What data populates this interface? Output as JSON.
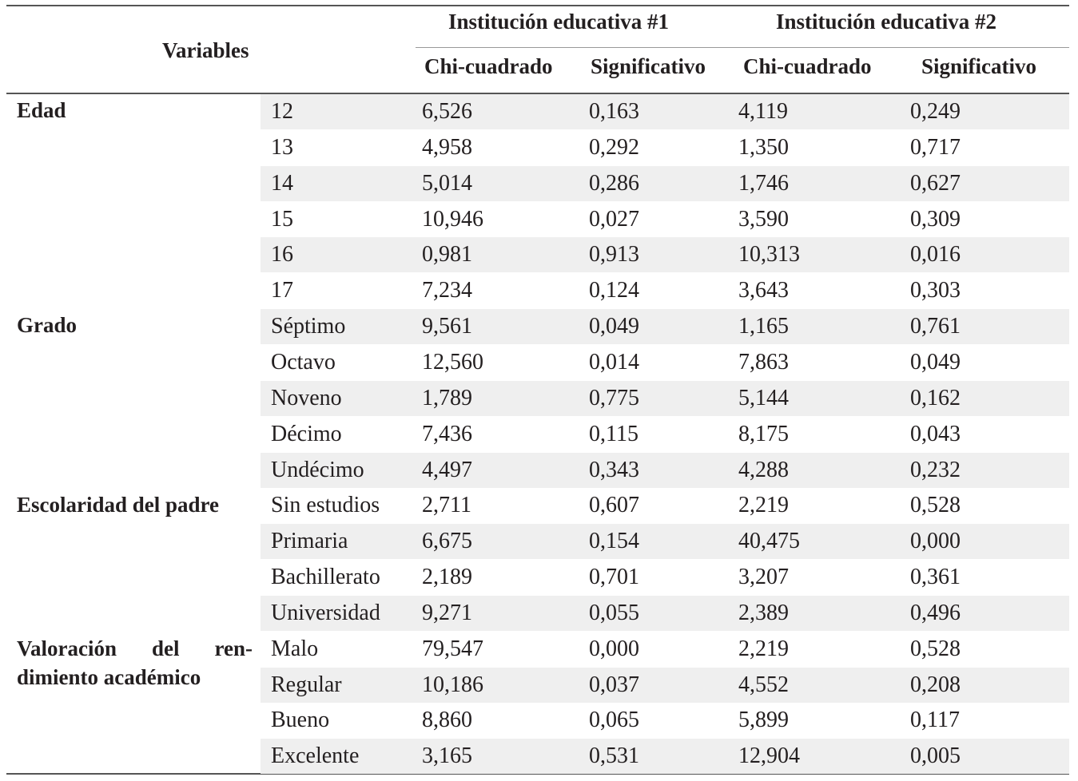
{
  "header": {
    "variables": "Variables",
    "inst1": "Institución educativa #1",
    "inst2": "Institución educativa #2",
    "chi1": "Chi-cuadrado",
    "sig1": "Significativo",
    "chi2": "Chi-cuadrado",
    "sig2": "Significativo"
  },
  "groups": [
    {
      "label": "Edad"
    },
    {
      "label": "Grado"
    },
    {
      "label": "Escolaridad del padre"
    },
    {
      "label_line1_words": [
        "Valoración",
        "del",
        "ren-"
      ],
      "label_line2": "dimiento académico"
    }
  ],
  "rows": [
    [
      "12",
      "6,526",
      "0,163",
      "4,119",
      "0,249"
    ],
    [
      "13",
      "4,958",
      "0,292",
      "1,350",
      "0,717"
    ],
    [
      "14",
      "5,014",
      "0,286",
      "1,746",
      "0,627"
    ],
    [
      "15",
      "10,946",
      "0,027",
      "3,590",
      "0,309"
    ],
    [
      "16",
      "0,981",
      "0,913",
      "10,313",
      "0,016"
    ],
    [
      "17",
      "7,234",
      "0,124",
      "3,643",
      "0,303"
    ],
    [
      "Séptimo",
      "9,561",
      "0,049",
      "1,165",
      "0,761"
    ],
    [
      "Octavo",
      "12,560",
      "0,014",
      "7,863",
      "0,049"
    ],
    [
      "Noveno",
      "1,789",
      "0,775",
      "5,144",
      "0,162"
    ],
    [
      "Décimo",
      "7,436",
      "0,115",
      "8,175",
      "0,043"
    ],
    [
      "Undécimo",
      "4,497",
      "0,343",
      "4,288",
      "0,232"
    ],
    [
      "Sin estudios",
      "2,711",
      "0,607",
      "2,219",
      "0,528"
    ],
    [
      "Primaria",
      "6,675",
      "0,154",
      "40,475",
      "0,000"
    ],
    [
      "Bachillerato",
      "2,189",
      "0,701",
      "3,207",
      "0,361"
    ],
    [
      "Universidad",
      "9,271",
      "0,055",
      "2,389",
      "0,496"
    ],
    [
      "Malo",
      "79,547",
      "0,000",
      "2,219",
      "0,528"
    ],
    [
      "Regular",
      "10,186",
      "0,037",
      "4,552",
      "0,208"
    ],
    [
      "Bueno",
      "8,860",
      "0,065",
      "5,899",
      "0,117"
    ],
    [
      "Excelente",
      "3,165",
      "0,531",
      "12,904",
      "0,005"
    ]
  ]
}
